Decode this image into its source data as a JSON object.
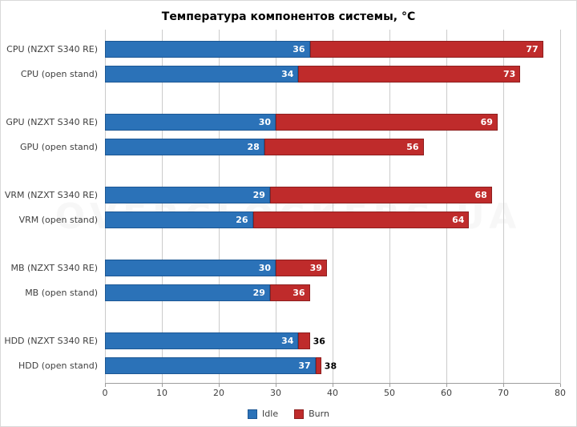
{
  "title": "Температура компонентов системы, °C",
  "watermark": "OVERCLOCKERS.UA",
  "chart_data": {
    "type": "bar",
    "orientation": "horizontal",
    "title": "Температура компонентов системы, °C",
    "xlim": [
      0,
      80
    ],
    "x_ticks": [
      0,
      10,
      20,
      30,
      40,
      50,
      60,
      70,
      80
    ],
    "grid": true,
    "legend_position": "bottom",
    "categories": [
      "CPU (NZXT S340 RE)",
      "CPU (open stand)",
      "GPU (NZXT S340 RE)",
      "GPU (open stand)",
      "VRM (NZXT S340 RE)",
      "VRM (open stand)",
      "MB (NZXT S340 RE)",
      "MB (open stand)",
      "HDD (NZXT S340 RE)",
      "HDD (open stand)"
    ],
    "series": [
      {
        "name": "Idle",
        "color": "#2b72b8",
        "border": "#1c5794",
        "values": [
          36,
          34,
          30,
          28,
          29,
          26,
          30,
          29,
          34,
          37
        ]
      },
      {
        "name": "Burn",
        "color": "#bf2b2b",
        "border": "#8e1f1f",
        "values": [
          77,
          73,
          69,
          56,
          68,
          64,
          39,
          36,
          36,
          38
        ]
      }
    ],
    "layout": {
      "pair_gap": 10,
      "group_gap": 39,
      "outside_label_min_units": 4
    }
  }
}
